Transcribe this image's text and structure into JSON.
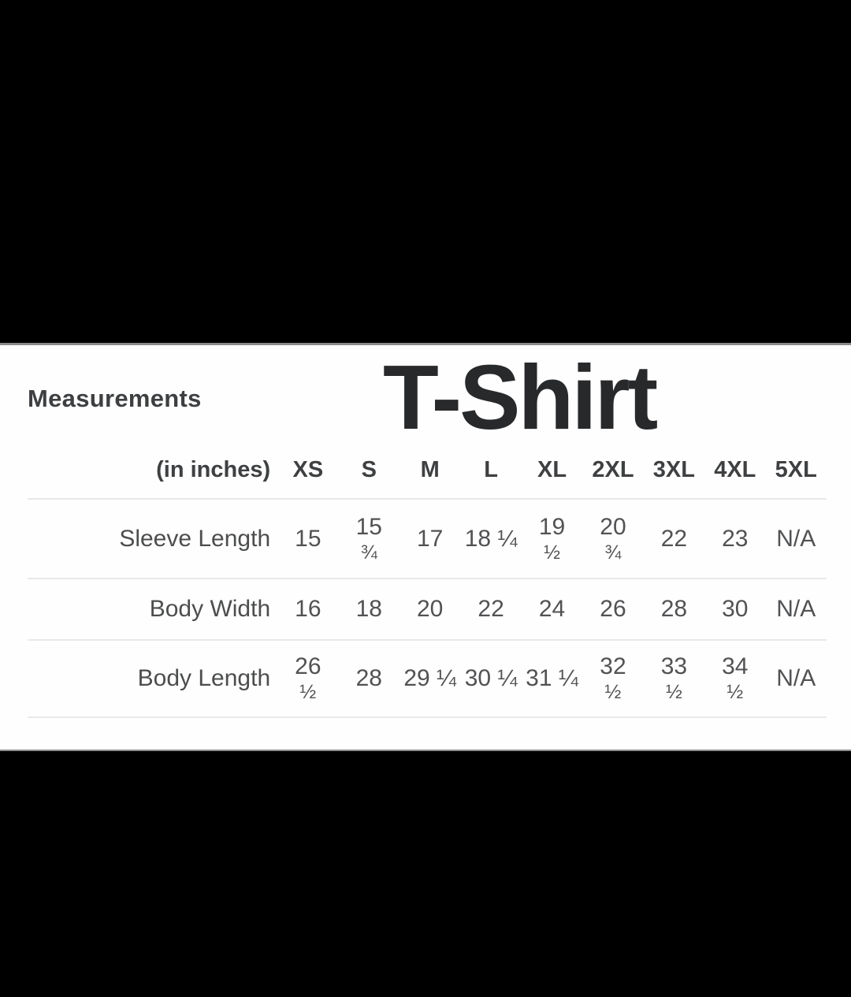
{
  "card": {
    "title": "T-Shirt",
    "measurements_label": "Measurements",
    "table": {
      "header_label": "(in inches)",
      "columns": [
        "XS",
        "S",
        "M",
        "L",
        "XL",
        "2XL",
        "3XL",
        "4XL",
        "5XL"
      ],
      "rows": [
        {
          "label": "Sleeve Length",
          "cells": [
            {
              "num": "15"
            },
            {
              "num": "15",
              "frac": "¾"
            },
            {
              "num": "17"
            },
            {
              "num": "18 ¼"
            },
            {
              "num": "19",
              "frac": "½"
            },
            {
              "num": "20",
              "frac": "¾"
            },
            {
              "num": "22"
            },
            {
              "num": "23"
            },
            {
              "num": "N/A"
            }
          ]
        },
        {
          "label": "Body Width",
          "cells": [
            {
              "num": "16"
            },
            {
              "num": "18"
            },
            {
              "num": "20"
            },
            {
              "num": "22"
            },
            {
              "num": "24"
            },
            {
              "num": "26"
            },
            {
              "num": "28"
            },
            {
              "num": "30"
            },
            {
              "num": "N/A"
            }
          ]
        },
        {
          "label": "Body Length",
          "cells": [
            {
              "num": "26",
              "frac": "½"
            },
            {
              "num": "28"
            },
            {
              "num": "29 ¼"
            },
            {
              "num": "30 ¼"
            },
            {
              "num": "31 ¼"
            },
            {
              "num": "32",
              "frac": "½"
            },
            {
              "num": "33",
              "frac": "½"
            },
            {
              "num": "34",
              "frac": "½"
            },
            {
              "num": "N/A"
            }
          ]
        }
      ]
    }
  },
  "colors": {
    "background": "#000000",
    "card_background": "#fefefe",
    "title_text": "#28292b",
    "header_text": "#3e4042",
    "body_text": "#515254",
    "divider": "#e9e9e9",
    "card_top_edge": "#87898c"
  }
}
